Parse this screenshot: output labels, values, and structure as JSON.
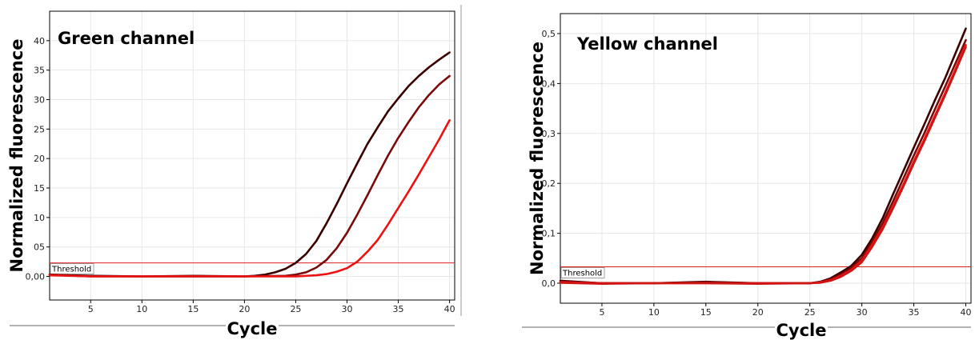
{
  "chart_data": [
    {
      "type": "line",
      "title": "Green channel",
      "xlabel": "Cycle",
      "ylabel": "Normalized fluorescence",
      "x_ticks": [
        5,
        10,
        15,
        20,
        25,
        30,
        35,
        40
      ],
      "y_ticks": [
        0,
        5,
        10,
        15,
        20,
        25,
        30,
        35,
        40
      ],
      "y_tick_labels": [
        "0,00",
        "05",
        "10",
        "15",
        "20",
        "25",
        "30",
        "35",
        "40"
      ],
      "xlim": [
        1,
        40.5
      ],
      "ylim": [
        -4,
        45
      ],
      "grid": true,
      "threshold": {
        "label": "Threshold",
        "value": 2.3,
        "color": "#e02020"
      },
      "series": [
        {
          "color": "#3a0000",
          "x": [
            1,
            5,
            10,
            15,
            20,
            21,
            22,
            23,
            24,
            25,
            26,
            27,
            28,
            29,
            30,
            31,
            32,
            33,
            34,
            35,
            36,
            37,
            38,
            39,
            40
          ],
          "y": [
            0.3,
            0.1,
            0,
            0,
            0,
            0.1,
            0.3,
            0.7,
            1.3,
            2.3,
            3.8,
            6,
            9,
            12.3,
            15.8,
            19.2,
            22.5,
            25.3,
            28,
            30.2,
            32.3,
            34,
            35.5,
            36.8,
            38
          ]
        },
        {
          "color": "#7a0a0a",
          "x": [
            1,
            5,
            10,
            15,
            20,
            24,
            25,
            26,
            27,
            28,
            29,
            30,
            31,
            32,
            33,
            34,
            35,
            36,
            37,
            38,
            39,
            40
          ],
          "y": [
            0.3,
            0,
            0,
            0.1,
            0,
            0.1,
            0.3,
            0.7,
            1.5,
            2.8,
            4.8,
            7.4,
            10.5,
            13.8,
            17.2,
            20.5,
            23.5,
            26.2,
            28.7,
            30.8,
            32.6,
            34
          ]
        },
        {
          "color": "#ee1111",
          "x": [
            1,
            5,
            10,
            15,
            20,
            25,
            27,
            28,
            29,
            30,
            31,
            32,
            33,
            34,
            35,
            36,
            37,
            38,
            39,
            40
          ],
          "y": [
            0.2,
            0,
            0,
            0,
            0,
            0,
            0.2,
            0.4,
            0.8,
            1.4,
            2.5,
            4.2,
            6.2,
            8.8,
            11.6,
            14.4,
            17.3,
            20.3,
            23.3,
            26.5
          ]
        }
      ]
    },
    {
      "type": "line",
      "title": "Yellow channel",
      "xlabel": "Cycle",
      "ylabel": "Normalized fluorescence",
      "x_ticks": [
        5,
        10,
        15,
        20,
        25,
        30,
        35,
        40
      ],
      "y_ticks": [
        0,
        0.1,
        0.2,
        0.3,
        0.4,
        0.5
      ],
      "y_tick_labels": [
        "0,0",
        "0,1",
        "0,2",
        "0,3",
        "0,4",
        "0,5"
      ],
      "xlim": [
        1,
        40.5
      ],
      "ylim": [
        -0.04,
        0.54
      ],
      "grid": true,
      "threshold": {
        "label": "Threshold",
        "value": 0.033,
        "color": "#e02020"
      },
      "series": [
        {
          "color": "#3a0000",
          "x": [
            1,
            5,
            10,
            15,
            20,
            25,
            26,
            27,
            28,
            29,
            30,
            31,
            32,
            33,
            34,
            35,
            36,
            37,
            38,
            39,
            40
          ],
          "y": [
            0.005,
            0,
            0,
            0.003,
            0,
            0,
            0.003,
            0.01,
            0.022,
            0.035,
            0.057,
            0.09,
            0.13,
            0.178,
            0.225,
            0.272,
            0.318,
            0.365,
            0.41,
            0.46,
            0.51
          ]
        },
        {
          "color": "#7a0a0a",
          "x": [
            1,
            5,
            10,
            15,
            20,
            25,
            26,
            27,
            28,
            29,
            30,
            31,
            32,
            33,
            34,
            35,
            36,
            37,
            38,
            39,
            40
          ],
          "y": [
            0.003,
            0,
            0,
            0.002,
            0,
            0,
            0.002,
            0.008,
            0.018,
            0.031,
            0.05,
            0.083,
            0.12,
            0.164,
            0.21,
            0.256,
            0.3,
            0.347,
            0.393,
            0.44,
            0.487
          ]
        },
        {
          "color": "#ee1111",
          "x": [
            1,
            5,
            10,
            15,
            20,
            25,
            26,
            27,
            28,
            29,
            30,
            31,
            32,
            33,
            34,
            35,
            36,
            37,
            38,
            39,
            40
          ],
          "y": [
            0.002,
            0,
            0,
            0,
            0,
            0,
            0.002,
            0.006,
            0.015,
            0.027,
            0.045,
            0.077,
            0.112,
            0.154,
            0.198,
            0.244,
            0.288,
            0.334,
            0.38,
            0.428,
            0.477
          ]
        },
        {
          "color": "#d01515",
          "x": [
            1,
            5,
            10,
            15,
            20,
            25,
            26,
            27,
            28,
            29,
            30,
            31,
            32,
            33,
            34,
            35,
            36,
            37,
            38,
            39,
            40
          ],
          "y": [
            0.001,
            -0.001,
            0,
            0,
            -0.001,
            0,
            0.001,
            0.005,
            0.013,
            0.025,
            0.042,
            0.073,
            0.108,
            0.15,
            0.194,
            0.24,
            0.284,
            0.33,
            0.376,
            0.424,
            0.473
          ]
        }
      ]
    }
  ]
}
